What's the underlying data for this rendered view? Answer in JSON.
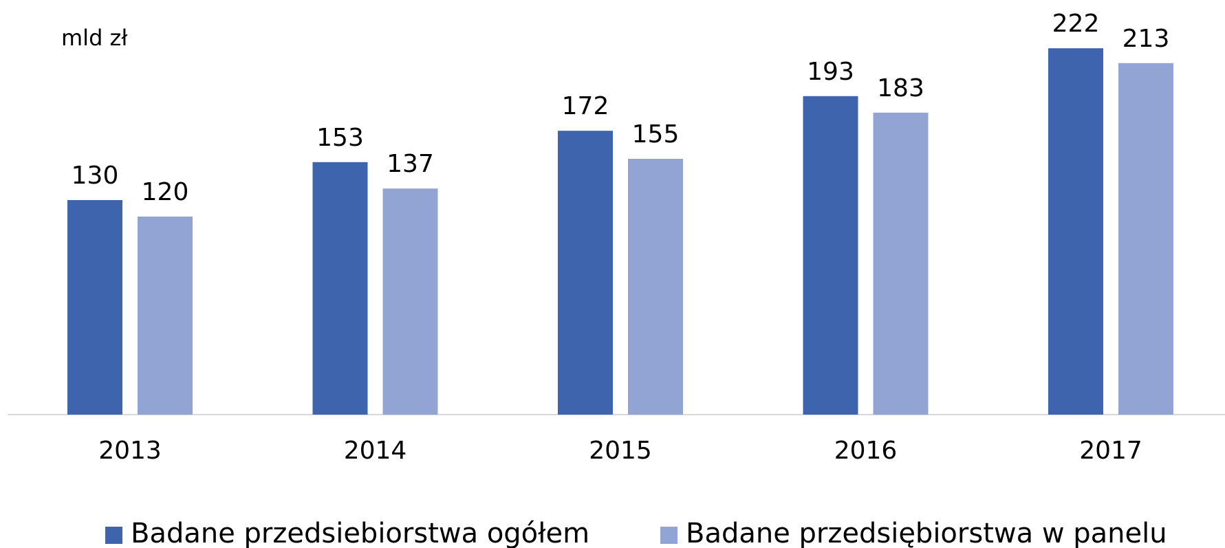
{
  "chart_data": {
    "type": "bar",
    "ylabel": "mld zł",
    "categories": [
      "2013",
      "2014",
      "2015",
      "2016",
      "2017"
    ],
    "series": [
      {
        "name": "Badane przedsiebiorstwa ogółem",
        "color": "#3d64ad",
        "values": [
          130,
          153,
          172,
          193,
          222
        ]
      },
      {
        "name": "Badane przedsiębiorstwa w panelu",
        "color": "#91a4d4",
        "values": [
          120,
          137,
          155,
          183,
          213
        ]
      }
    ],
    "ylim": [
      0,
      250
    ]
  }
}
